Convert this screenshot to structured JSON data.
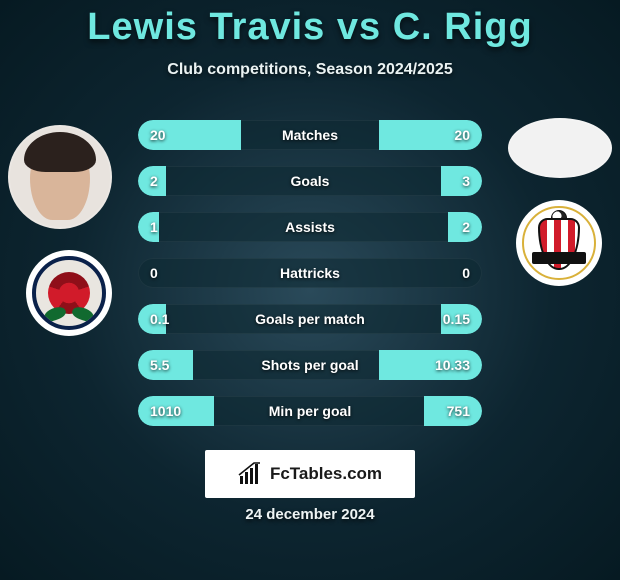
{
  "header": {
    "player1": "Lewis Travis",
    "vs": "vs",
    "player2": "C. Rigg",
    "subtitle": "Club competitions, Season 2024/2025",
    "accent_color": "#6fe8e0"
  },
  "left": {
    "avatar_name": "player-left-avatar",
    "club_name": "blackburn-rovers-crest"
  },
  "right": {
    "avatar_name": "player-right-avatar",
    "club_name": "sunderland-crest"
  },
  "stats": {
    "track_color": "rgba(12,40,50,0.55)",
    "bar_color": "#6fe8e0",
    "rows": [
      {
        "label": "Matches",
        "left_text": "20",
        "right_text": "20",
        "left_pct": 30,
        "right_pct": 30
      },
      {
        "label": "Goals",
        "left_text": "2",
        "right_text": "3",
        "left_pct": 8,
        "right_pct": 12
      },
      {
        "label": "Assists",
        "left_text": "1",
        "right_text": "2",
        "left_pct": 6,
        "right_pct": 10
      },
      {
        "label": "Hattricks",
        "left_text": "0",
        "right_text": "0",
        "left_pct": 0,
        "right_pct": 0
      },
      {
        "label": "Goals per match",
        "left_text": "0.1",
        "right_text": "0.15",
        "left_pct": 8,
        "right_pct": 12
      },
      {
        "label": "Shots per goal",
        "left_text": "5.5",
        "right_text": "10.33",
        "left_pct": 16,
        "right_pct": 30
      },
      {
        "label": "Min per goal",
        "left_text": "1010",
        "right_text": "751",
        "left_pct": 22,
        "right_pct": 17
      }
    ]
  },
  "footer": {
    "brand": "FcTables.com",
    "date": "24 december 2024"
  },
  "colors": {
    "bg_inner": "#2a4a5a",
    "bg_outer": "#061a22",
    "text": "#ffffff",
    "brand_bg": "#ffffff",
    "brand_text": "#1a1a1a"
  }
}
